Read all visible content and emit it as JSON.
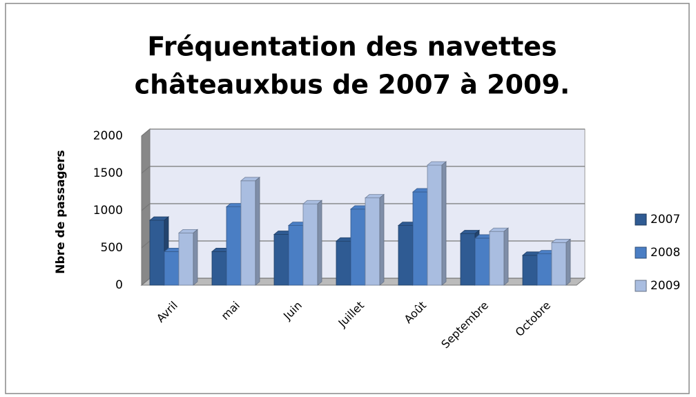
{
  "chart_data": {
    "type": "bar3d",
    "title": "Fréquentation des navettes",
    "subtitle": "châteauxbus de 2007 à 2009.",
    "y_label": "Nbre de passagers",
    "categories": [
      "Avril",
      "mai",
      "Juin",
      "Juillet",
      "Août",
      "Septembre",
      "Octobre"
    ],
    "series": [
      {
        "name": "2007",
        "color": "#2f5b93",
        "values": [
          870,
          450,
          680,
          590,
          800,
          690,
          400
        ]
      },
      {
        "name": "2008",
        "color": "#4a7ec4",
        "values": [
          450,
          1050,
          800,
          1020,
          1250,
          630,
          420
        ]
      },
      {
        "name": "2009",
        "color": "#a9bde0",
        "values": [
          700,
          1400,
          1090,
          1170,
          1610,
          720,
          570
        ]
      }
    ],
    "ylim": [
      0,
      2000
    ],
    "yticks": [
      0,
      500,
      1000,
      1500,
      2000
    ],
    "grid": true,
    "legend": "right"
  }
}
